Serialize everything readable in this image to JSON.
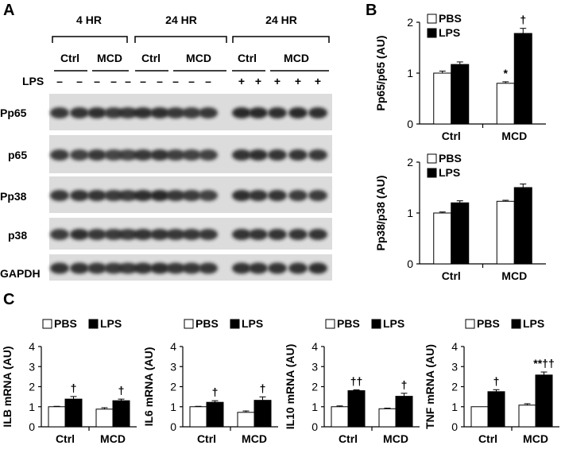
{
  "panels": {
    "a": "A",
    "b": "B",
    "c": "C"
  },
  "western_blot": {
    "time_groups": [
      "4 HR",
      "24 HR",
      "24 HR"
    ],
    "subgroups": [
      "Ctrl",
      "MCD",
      "Ctrl",
      "MCD",
      "Ctrl",
      "MCD"
    ],
    "lps_label": "LPS",
    "lps_marks": [
      "–",
      "–",
      "–",
      "–",
      "–",
      "–",
      "–",
      "–",
      "–",
      "–",
      "+",
      "+",
      "+",
      "+",
      "+"
    ],
    "rows": [
      "Pp65",
      "p65",
      "Pp38",
      "p38",
      "GAPDH"
    ]
  },
  "chart_data": [
    {
      "id": "pp65",
      "type": "bar",
      "categories": [
        "Ctrl",
        "MCD"
      ],
      "series": [
        {
          "name": "PBS",
          "values": [
            1.0,
            0.8
          ],
          "errors": [
            0.04,
            0.03
          ],
          "color": "#ffffff"
        },
        {
          "name": "LPS",
          "values": [
            1.17,
            1.78
          ],
          "errors": [
            0.05,
            0.1
          ],
          "color": "#000000"
        }
      ],
      "annotations": {
        "PBS": [
          "",
          "*"
        ],
        "LPS": [
          "",
          "†"
        ]
      },
      "ylabel": "Pp65/p65 (AU)",
      "ylim": [
        0,
        2
      ],
      "yticks": [
        0,
        1,
        2
      ],
      "legend": "top-left"
    },
    {
      "id": "pp38",
      "type": "bar",
      "categories": [
        "Ctrl",
        "MCD"
      ],
      "series": [
        {
          "name": "PBS",
          "values": [
            1.0,
            1.23
          ],
          "errors": [
            0.02,
            0.02
          ],
          "color": "#ffffff"
        },
        {
          "name": "LPS",
          "values": [
            1.2,
            1.5
          ],
          "errors": [
            0.04,
            0.07
          ],
          "color": "#000000"
        }
      ],
      "annotations": {
        "PBS": [
          "",
          ""
        ],
        "LPS": [
          "",
          ""
        ]
      },
      "ylabel": "Pp38/p38 (AU)",
      "ylim": [
        0,
        2
      ],
      "yticks": [
        0,
        1,
        2
      ],
      "legend": "top-left"
    },
    {
      "id": "il1b",
      "type": "bar",
      "categories": [
        "Ctrl",
        "MCD"
      ],
      "series": [
        {
          "name": "PBS",
          "values": [
            1.0,
            0.88
          ],
          "errors": [
            0.02,
            0.07
          ],
          "color": "#ffffff"
        },
        {
          "name": "LPS",
          "values": [
            1.38,
            1.3
          ],
          "errors": [
            0.13,
            0.08
          ],
          "color": "#000000"
        }
      ],
      "annotations": {
        "PBS": [
          "",
          ""
        ],
        "LPS": [
          "†",
          "†"
        ]
      },
      "ylabel": "ILB mRNA (AU)",
      "ylim": [
        0,
        4
      ],
      "yticks": [
        0,
        1,
        2,
        3,
        4
      ],
      "legend": "top"
    },
    {
      "id": "il6",
      "type": "bar",
      "categories": [
        "Ctrl",
        "MCD"
      ],
      "series": [
        {
          "name": "PBS",
          "values": [
            1.0,
            0.72
          ],
          "errors": [
            0.02,
            0.07
          ],
          "color": "#ffffff"
        },
        {
          "name": "LPS",
          "values": [
            1.22,
            1.32
          ],
          "errors": [
            0.08,
            0.17
          ],
          "color": "#000000"
        }
      ],
      "annotations": {
        "PBS": [
          "",
          ""
        ],
        "LPS": [
          "†",
          "†"
        ]
      },
      "ylabel": "IL6 mRNA (AU)",
      "ylim": [
        0,
        4
      ],
      "yticks": [
        0,
        1,
        2,
        3,
        4
      ],
      "legend": "top"
    },
    {
      "id": "il10",
      "type": "bar",
      "categories": [
        "Ctrl",
        "MCD"
      ],
      "series": [
        {
          "name": "PBS",
          "values": [
            1.0,
            0.9
          ],
          "errors": [
            0.04,
            0.03
          ],
          "color": "#ffffff"
        },
        {
          "name": "LPS",
          "values": [
            1.8,
            1.52
          ],
          "errors": [
            0.04,
            0.15
          ],
          "color": "#000000"
        }
      ],
      "annotations": {
        "PBS": [
          "",
          ""
        ],
        "LPS": [
          "††",
          "†"
        ]
      },
      "ylabel": "IL10 mRNA (AU)",
      "ylim": [
        0,
        4
      ],
      "yticks": [
        0,
        1,
        2,
        3,
        4
      ],
      "legend": "top"
    },
    {
      "id": "tnf",
      "type": "bar",
      "categories": [
        "Ctrl",
        "MCD"
      ],
      "series": [
        {
          "name": "PBS",
          "values": [
            1.0,
            1.08
          ],
          "errors": [
            0.0,
            0.07
          ],
          "color": "#ffffff"
        },
        {
          "name": "LPS",
          "values": [
            1.75,
            2.58
          ],
          "errors": [
            0.1,
            0.15
          ],
          "color": "#000000"
        }
      ],
      "annotations": {
        "PBS": [
          "",
          ""
        ],
        "LPS": [
          "†",
          "**††"
        ]
      },
      "ylabel": "TNF mRNA (AU)",
      "ylim": [
        0,
        4
      ],
      "yticks": [
        0,
        1,
        2,
        3,
        4
      ],
      "legend": "top"
    }
  ]
}
